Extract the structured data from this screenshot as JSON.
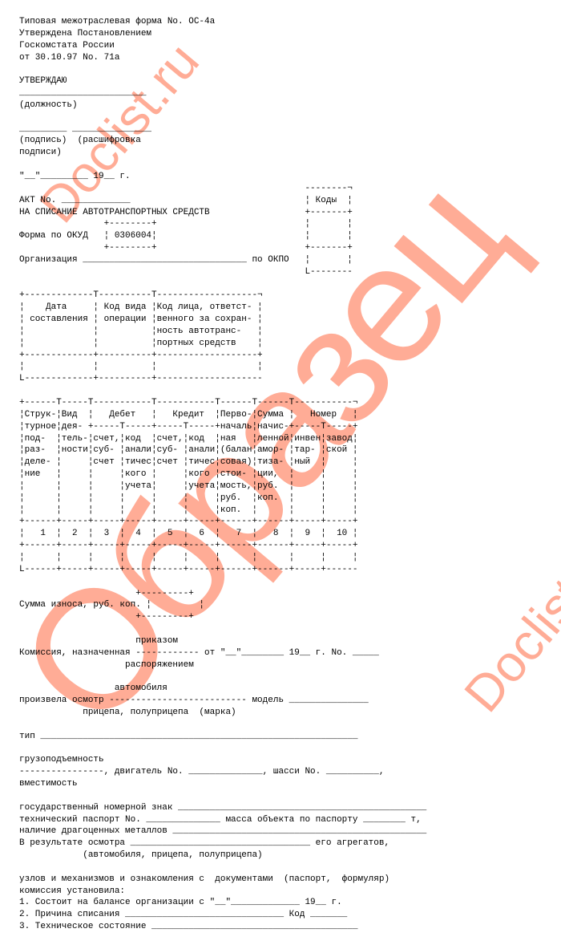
{
  "watermarks": {
    "obrazec": "Образец",
    "doclist1": "Doclist.ru",
    "doclist2": "Doclist.ru"
  },
  "lines": {
    "l0": "Типовая межотраслевая форма No. ОС-4а",
    "l1": "Утверждена Постановлением",
    "l2": "Госкомстата России",
    "l3": "от 30.10.97 No. 71а",
    "l4": "",
    "l5": "УТВЕРЖДАЮ",
    "l6": "________________________",
    "l7": "(должность)",
    "l8": "",
    "l9": "_________ _______________",
    "l10": "(подпись)  (расшифровка",
    "l11": "подписи)",
    "l12": "",
    "l13": "\"__\"_________ 19__ г.",
    "l14": "                                                      --------¬",
    "l15": "АКТ No. _____________                                 ¦ Коды  ¦",
    "l16": "НА СПИСАНИЕ АВТОТРАНСПОРТНЫХ СРЕДСТВ                  +-------+",
    "l17": "                +--------+                            ¦       ¦",
    "l18": "Форма по ОКУД   ¦ 0306004¦                            ¦       ¦",
    "l19": "                +--------+                            +-------+",
    "l20": "Организация _______________________________ по ОКПО   ¦       ¦",
    "l21": "                                                      L--------",
    "l22": "",
    "l23": "+-------------T----------T-------------------¬",
    "l24": "¦    Дата     ¦ Код вида ¦Код лица, ответст- ¦",
    "l25": "¦ составления ¦ операции ¦венного за сохран- ¦",
    "l26": "¦             ¦          ¦ность автотранс-   ¦",
    "l27": "¦             ¦          ¦портных средств    ¦",
    "l28": "+-------------+----------+-------------------+",
    "l29": "¦             ¦          ¦                   ¦",
    "l30": "L-------------+----------+--------------------",
    "l31": "",
    "l32": "+------T-----T-----------T-----------T------T------T-----------¬",
    "l33": "¦Струк-¦Вид  ¦   Дебет   ¦   Кредит  ¦Перво-¦Сумма ¦   Номер   ¦",
    "l34": "¦турное¦дея- +-----T-----+-----T-----+началь¦начис-+-----T-----+",
    "l35": "¦под-  ¦тель-¦счет,¦код  ¦счет,¦код  ¦ная   ¦ленной¦инвен¦завод¦",
    "l36": "¦раз-  ¦ности¦суб- ¦анали¦суб- ¦анали¦(балан¦амор- ¦тар- ¦ской ¦",
    "l37": "¦деле- ¦     ¦счет ¦тичес¦счет ¦тичес¦совая)¦тиза- ¦ный  ¦     ¦",
    "l38": "¦ние   ¦     ¦     ¦кого ¦     ¦кого ¦стои- ¦ции,  ¦     ¦     ¦",
    "l39": "¦      ¦     ¦     ¦учета¦     ¦учета¦мость,¦руб.  ¦     ¦     ¦",
    "l40": "¦      ¦     ¦     ¦     ¦     ¦     ¦руб.  ¦коп.  ¦     ¦     ¦",
    "l41": "¦      ¦     ¦     ¦     ¦     ¦     ¦коп.  ¦      ¦     ¦     ¦",
    "l42": "+------+-----+-----+-----+-----+-----+------+------+-----+-----+",
    "l43": "¦   1  ¦  2  ¦  3  ¦  4  ¦  5  ¦  6  ¦   7  ¦   8  ¦  9  ¦  10 ¦",
    "l44": "+------+-----+-----+-----+-----+-----+------+------+-----+-----+",
    "l45": "¦      ¦     ¦     ¦     ¦     ¦     ¦      ¦      ¦     ¦     ¦",
    "l46": "L------+-----+-----+-----+-----+-----+------+------+-----+------",
    "l47": "",
    "l48": "                      +---------+",
    "l49": "Сумма износа, руб. коп. ¦         ¦",
    "l50": "                      +---------+",
    "l51": "",
    "l52": "                      приказом",
    "l53": "Комиссия, назначенная ------------ от \"__\"________ 19__ г. No. _____",
    "l54": "                    распоряжением",
    "l55": "",
    "l56": "                  автомобиля",
    "l57": "произвела осмотр -------------------------- модель _______________",
    "l58": "            прицепа, полуприцепа  (марка)",
    "l59": "",
    "l60": "тип ____________________________________________________________",
    "l61": "",
    "l62": "грузоподъемность",
    "l63": "----------------, двигатель No. ______________, шасси No. __________,",
    "l64": "вместимость",
    "l65": "",
    "l66": "государственный номерной знак _______________________________________________",
    "l67": "технический паспорт No. ______________ масса объекта по паспорту ________ т,",
    "l68": "наличие драгоценных металлов ________________________________________________",
    "l69": "В результате осмотра __________________________________ его агрегатов,",
    "l70": "            (автомобиля, прицепа, полуприцепа)",
    "l71": "",
    "l72": "узлов и механизмов и ознакомления с  документами  (паспорт,  формуляр)",
    "l73": "комиссия установила:",
    "l74": "1. Состоит на балансе организации с \"__\"_____________ 19__ г.",
    "l75": "2. Причина списания ______________________________ Код _______",
    "l76": "3. Техническое состояние _______________________________________"
  }
}
